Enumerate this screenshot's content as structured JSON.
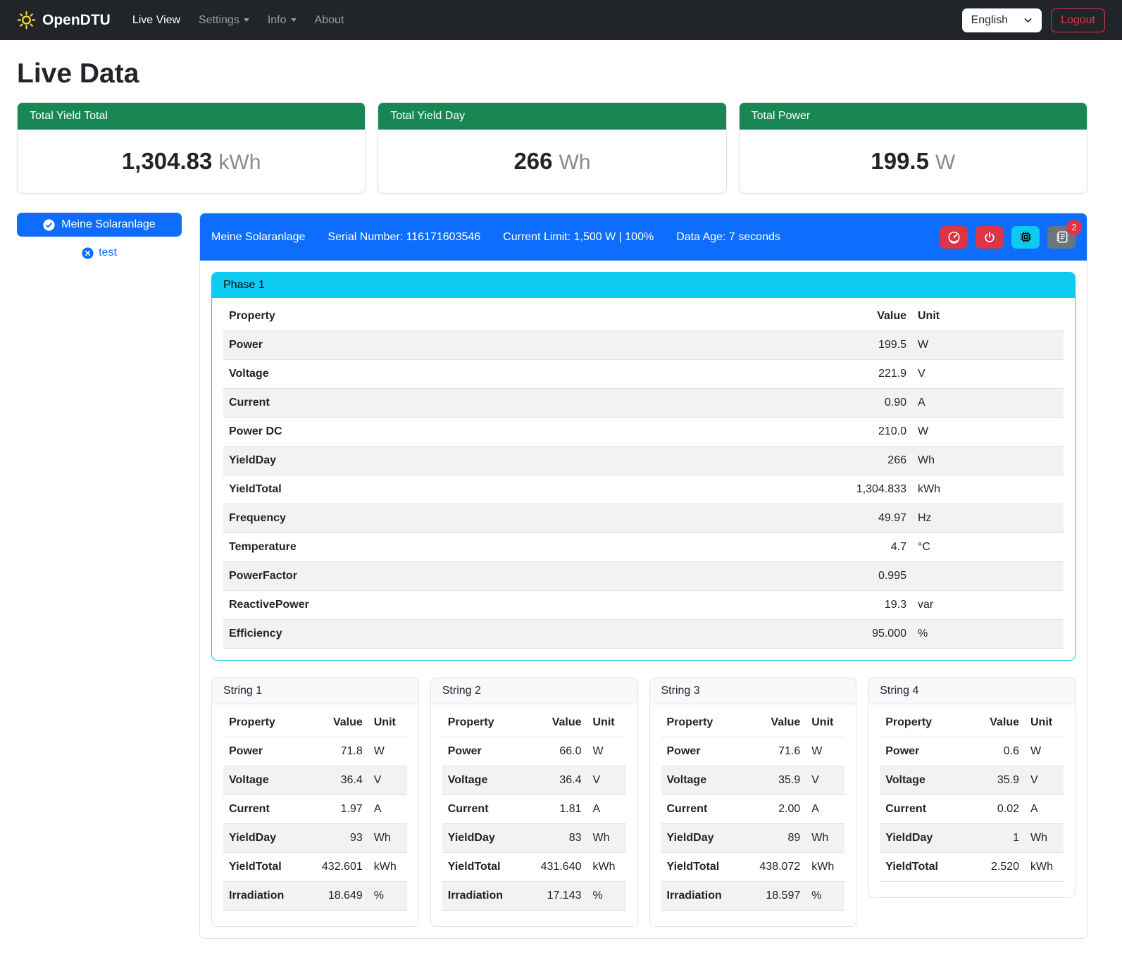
{
  "navbar": {
    "brand": "OpenDTU",
    "items": [
      {
        "label": "Live View"
      },
      {
        "label": "Settings"
      },
      {
        "label": "Info"
      },
      {
        "label": "About"
      }
    ],
    "language": "English",
    "logout_label": "Logout"
  },
  "page": {
    "title": "Live Data"
  },
  "summary_cards": [
    {
      "title": "Total Yield Total",
      "value": "1,304.83",
      "unit": "kWh"
    },
    {
      "title": "Total Yield Day",
      "value": "266",
      "unit": "Wh"
    },
    {
      "title": "Total Power",
      "value": "199.5",
      "unit": "W"
    }
  ],
  "inverter_list": {
    "selected": {
      "label": "Meine Solaranlage",
      "icon": "check-circle-icon"
    },
    "other": {
      "label": "test",
      "icon": "x-circle-icon"
    }
  },
  "inverter_panel": {
    "name": "Meine Solaranlage",
    "serial": "Serial Number: 116171603546",
    "limit": "Current Limit: 1,500 W | 100%",
    "data_age": "Data Age: 7 seconds",
    "buttons": [
      {
        "icon": "speedometer-icon",
        "color": "#dc3545"
      },
      {
        "icon": "power-icon",
        "color": "#dc3545"
      },
      {
        "icon": "cpu-icon",
        "color": "#0dcaf0"
      },
      {
        "icon": "journal-icon",
        "color": "#6c757d",
        "badge": "2"
      }
    ],
    "badge_count": "2"
  },
  "table_columns": {
    "property": "Property",
    "value": "Value",
    "unit": "Unit"
  },
  "phase": {
    "title": "Phase 1",
    "rows": [
      [
        "Power",
        "199.5",
        "W"
      ],
      [
        "Voltage",
        "221.9",
        "V"
      ],
      [
        "Current",
        "0.90",
        "A"
      ],
      [
        "Power DC",
        "210.0",
        "W"
      ],
      [
        "YieldDay",
        "266",
        "Wh"
      ],
      [
        "YieldTotal",
        "1,304.833",
        "kWh"
      ],
      [
        "Frequency",
        "49.97",
        "Hz"
      ],
      [
        "Temperature",
        "4.7",
        "°C"
      ],
      [
        "PowerFactor",
        "0.995",
        ""
      ],
      [
        "ReactivePower",
        "19.3",
        "var"
      ],
      [
        "Efficiency",
        "95.000",
        "%"
      ]
    ]
  },
  "strings": [
    {
      "title": "String 1",
      "rows": [
        [
          "Power",
          "71.8",
          "W"
        ],
        [
          "Voltage",
          "36.4",
          "V"
        ],
        [
          "Current",
          "1.97",
          "A"
        ],
        [
          "YieldDay",
          "93",
          "Wh"
        ],
        [
          "YieldTotal",
          "432.601",
          "kWh"
        ],
        [
          "Irradiation",
          "18.649",
          "%"
        ]
      ]
    },
    {
      "title": "String 2",
      "rows": [
        [
          "Power",
          "66.0",
          "W"
        ],
        [
          "Voltage",
          "36.4",
          "V"
        ],
        [
          "Current",
          "1.81",
          "A"
        ],
        [
          "YieldDay",
          "83",
          "Wh"
        ],
        [
          "YieldTotal",
          "431.640",
          "kWh"
        ],
        [
          "Irradiation",
          "17.143",
          "%"
        ]
      ]
    },
    {
      "title": "String 3",
      "rows": [
        [
          "Power",
          "71.6",
          "W"
        ],
        [
          "Voltage",
          "35.9",
          "V"
        ],
        [
          "Current",
          "2.00",
          "A"
        ],
        [
          "YieldDay",
          "89",
          "Wh"
        ],
        [
          "YieldTotal",
          "438.072",
          "kWh"
        ],
        [
          "Irradiation",
          "18.597",
          "%"
        ]
      ]
    },
    {
      "title": "String 4",
      "rows": [
        [
          "Power",
          "0.6",
          "W"
        ],
        [
          "Voltage",
          "35.9",
          "V"
        ],
        [
          "Current",
          "0.02",
          "A"
        ],
        [
          "YieldDay",
          "1",
          "Wh"
        ],
        [
          "YieldTotal",
          "2.520",
          "kWh"
        ]
      ]
    }
  ],
  "colors": {
    "navbar_bg": "#212529",
    "brand_sun": "#ffd43b",
    "success_green": "#198754",
    "primary_blue": "#0d6efd",
    "info_cyan": "#0dcaf0",
    "danger_red": "#dc3545",
    "secondary_gray": "#6c757d"
  }
}
